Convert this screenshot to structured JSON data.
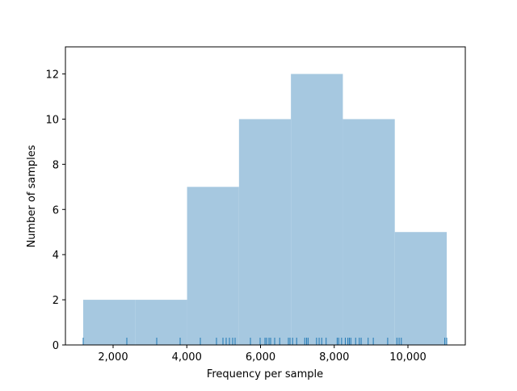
{
  "chart_data": {
    "type": "histogram",
    "xlabel": "Frequency per sample",
    "ylabel": "Number of samples",
    "bins": [
      1189,
      2598,
      4007,
      5416,
      6825,
      8234,
      9643,
      11052
    ],
    "values": [
      2,
      2,
      7,
      10,
      12,
      10,
      5
    ],
    "color": "#a6c8e0",
    "rug": [
      1189,
      2373,
      3184,
      3819,
      4367,
      4805,
      4981,
      5068,
      5156,
      5244,
      5310,
      5726,
      5989,
      6121,
      6164,
      6230,
      6274,
      6384,
      6520,
      6756,
      6800,
      6870,
      6980,
      7200,
      7250,
      7290,
      7520,
      7590,
      7660,
      7780,
      8080,
      8120,
      8200,
      8300,
      8370,
      8410,
      8450,
      8580,
      8680,
      8730,
      8920,
      9060,
      9450,
      9700,
      9760,
      9820,
      11000,
      11052
    ],
    "rug_color": "#1f77b4",
    "xlim": [
      707,
      11556
    ],
    "ylim": [
      0,
      13.2
    ],
    "xticks": [
      {
        "value": 2000,
        "label": "2,000"
      },
      {
        "value": 4000,
        "label": "4,000"
      },
      {
        "value": 6000,
        "label": "6,000"
      },
      {
        "value": 8000,
        "label": "8,000"
      },
      {
        "value": 10000,
        "label": "10,000"
      }
    ],
    "yticks": [
      0,
      2,
      4,
      6,
      8,
      10,
      12
    ]
  }
}
